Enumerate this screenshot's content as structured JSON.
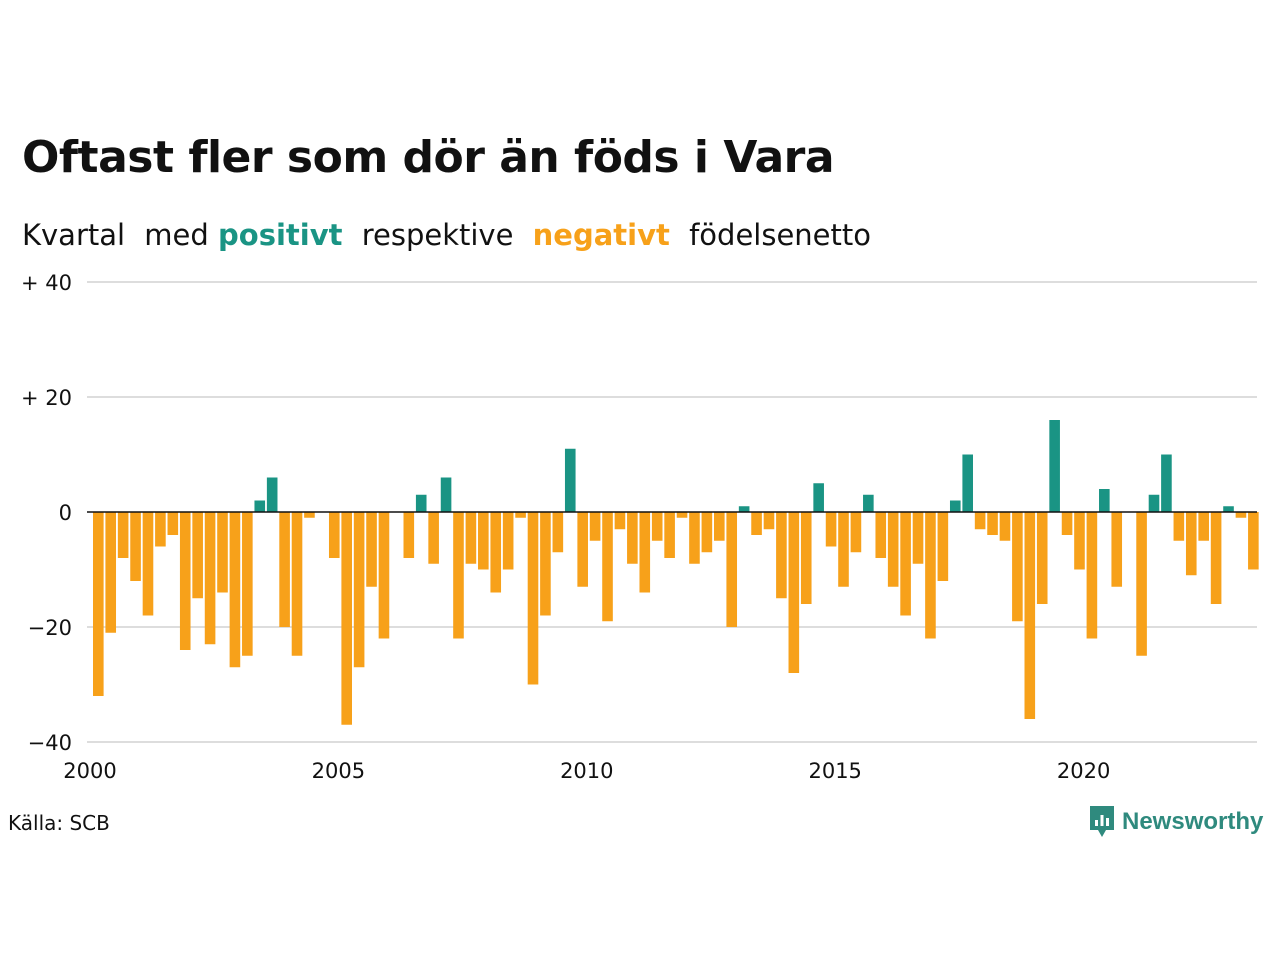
{
  "title": "Oftast fler som dör än föds i Vara",
  "subtitle": {
    "part1": "Kvartal",
    "part2": "med",
    "positive": "positivt",
    "part3": "respektive",
    "negative": "negativt",
    "part4": "födelsenetto"
  },
  "source": "Källa: SCB",
  "brand": "Newsworthy",
  "colors": {
    "positive": "#1a9484",
    "negative": "#f7a11a",
    "grid": "#dddddd",
    "zero": "#111111"
  },
  "chart_data": {
    "type": "bar",
    "title": "Oftast fler som dör än föds i Vara",
    "xlabel": "",
    "ylabel": "",
    "x_start": 2000,
    "periods_per_year": 4,
    "ylim": [
      -40,
      40
    ],
    "yticks": [
      40,
      20,
      0,
      -20,
      -40
    ],
    "ytick_labels": [
      "+ 40",
      "+ 20",
      "0",
      "−20",
      "−40"
    ],
    "xticks": [
      2000,
      2005,
      2010,
      2015,
      2020
    ],
    "xtick_labels": [
      "2000",
      "2005",
      "2010",
      "2015",
      "2020"
    ],
    "grid": true,
    "values": [
      -32,
      -21,
      -8,
      -12,
      -18,
      -6,
      -4,
      -24,
      -15,
      -23,
      -14,
      -27,
      -25,
      2,
      6,
      -20,
      -25,
      -1,
      0,
      -8,
      -37,
      -27,
      -13,
      -22,
      0,
      -8,
      3,
      -9,
      6,
      -22,
      -9,
      -10,
      -14,
      -10,
      -1,
      -30,
      -18,
      -7,
      11,
      -13,
      -5,
      -19,
      -3,
      -9,
      -14,
      -5,
      -8,
      -1,
      -9,
      -7,
      -5,
      -20,
      1,
      -4,
      -3,
      -15,
      -28,
      -16,
      5,
      -6,
      -13,
      -7,
      3,
      -8,
      -13,
      -18,
      -9,
      -22,
      -12,
      2,
      10,
      -3,
      -4,
      -5,
      -19,
      -36,
      -16,
      16,
      -4,
      -10,
      -22,
      4,
      -13,
      0,
      -25,
      3,
      10,
      -5,
      -11,
      -5,
      -16,
      1,
      -1,
      -10
    ]
  }
}
